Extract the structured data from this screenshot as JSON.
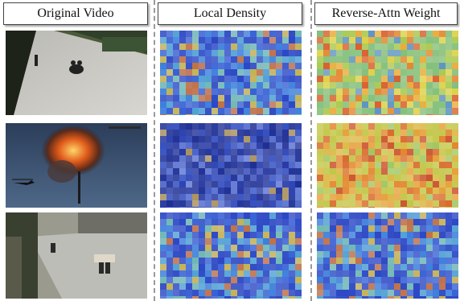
{
  "columns": [
    {
      "title": "Original Video"
    },
    {
      "title": "Local Density"
    },
    {
      "title": "Reverse-Attn Weight"
    }
  ],
  "rows": [
    {
      "scene": "road-motorbike"
    },
    {
      "scene": "explosion-helicopter"
    },
    {
      "scene": "street-people-carrying"
    }
  ],
  "colors": {
    "density_base": "#2a3fae",
    "density_hot": "#e8c02a",
    "attn_base": "#8ec86a",
    "attn_hot": "#d9482c"
  }
}
